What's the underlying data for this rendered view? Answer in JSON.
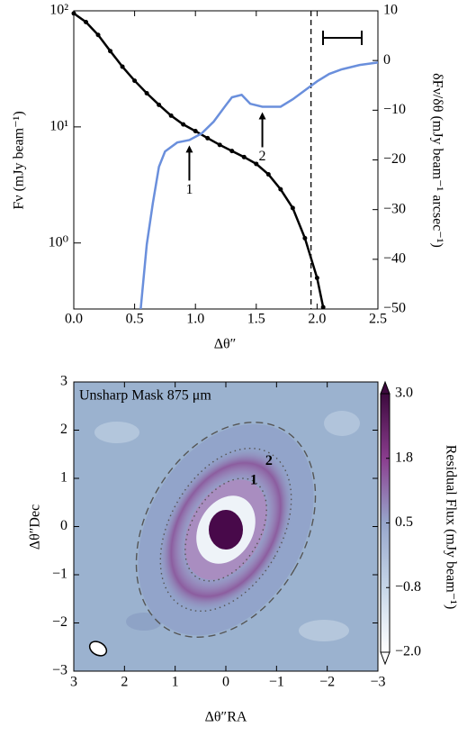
{
  "chart_data": [
    {
      "type": "line",
      "xlabel": "Δθ″",
      "ylabel": "Fν (mJy beam⁻¹)",
      "y2label": "δFν/δθ (mJy beam⁻¹ arcsec⁻¹)",
      "log_y": true,
      "xlim": [
        0,
        2.5
      ],
      "xticks": [
        {
          "value": 0,
          "label": "0.0"
        },
        0.5,
        {
          "value": 1,
          "label": "1.0"
        },
        1.5,
        {
          "value": 2,
          "label": "2.0"
        },
        2.5
      ],
      "ylim": [
        0.27,
        100
      ],
      "yticks": [
        {
          "value": 1,
          "label": "10⁰"
        },
        {
          "value": 10,
          "label": "10¹"
        },
        {
          "value": 100,
          "label": "10²"
        }
      ],
      "y2lim": [
        -50,
        10
      ],
      "y2ticks": [
        {
          "value": -50,
          "label": "−50"
        },
        {
          "value": -40,
          "label": "−40"
        },
        {
          "value": -30,
          "label": "−30"
        },
        {
          "value": -20,
          "label": "−20"
        },
        {
          "value": -10,
          "label": "−10"
        },
        0,
        10
      ],
      "vline": 1.95,
      "series": [
        {
          "color": "#000000",
          "markers": true,
          "x": [
            0,
            0.1,
            0.2,
            0.3,
            0.4,
            0.5,
            0.6,
            0.7,
            0.8,
            0.9,
            1.0,
            1.1,
            1.2,
            1.3,
            1.4,
            1.5,
            1.6,
            1.7,
            1.8,
            1.9,
            2.0,
            2.05
          ],
          "values": [
            95,
            80,
            62,
            45,
            33,
            25,
            19.5,
            15.5,
            12.5,
            10.5,
            9.2,
            8.0,
            7.0,
            6.2,
            5.5,
            4.8,
            3.9,
            2.9,
            2.0,
            1.1,
            0.5,
            0.28
          ]
        },
        {
          "color": "#6a8fdc",
          "axis": "y2",
          "markers": false,
          "x": [
            0.55,
            0.6,
            0.65,
            0.7,
            0.75,
            0.85,
            0.95,
            1.05,
            1.15,
            1.25,
            1.3,
            1.38,
            1.45,
            1.55,
            1.7,
            1.8,
            1.9,
            2.0,
            2.1,
            2.2,
            2.35,
            2.5
          ],
          "values": [
            -50,
            -37,
            -28.7,
            -21.4,
            -18.3,
            -16.5,
            -16,
            -14.7,
            -12.3,
            -9,
            -7.4,
            -6.9,
            -8.7,
            -9.3,
            -9.3,
            -7.8,
            -6,
            -4.2,
            -2.7,
            -1.8,
            -0.9,
            -0.4
          ]
        }
      ],
      "annotations": [
        {
          "text": "1",
          "x": 0.95
        },
        {
          "text": "2",
          "x": 1.55
        }
      ]
    },
    {
      "type": "image",
      "title": "Unsharp Mask 875 μm",
      "xlabel": "Δθ″RA",
      "ylabel": "Δθ″Dec",
      "colorbar_label": "Residual Flux (mJy beam⁻¹)",
      "xlim": [
        3,
        -3
      ],
      "xticks": [
        3,
        2,
        1,
        0,
        {
          "value": -1,
          "label": "−1"
        },
        {
          "value": -2,
          "label": "−2"
        },
        {
          "value": -3,
          "label": "−3"
        }
      ],
      "ylim": [
        -3,
        3
      ],
      "yticks": [
        {
          "value": -3,
          "label": "−3"
        },
        {
          "value": -2,
          "label": "−2"
        },
        {
          "value": -1,
          "label": "−1"
        },
        0,
        1,
        2,
        3
      ],
      "colorbar_ticks": [
        {
          "value": 3,
          "label": "3.0"
        },
        1.8,
        0.5,
        {
          "value": -0.8,
          "label": "−0.8"
        },
        {
          "value": -2,
          "label": "−2.0"
        }
      ],
      "annotations": [
        {
          "text": "1",
          "x": -0.55,
          "y": 0.95
        },
        {
          "text": "2",
          "x": -0.85,
          "y": 1.35
        }
      ]
    }
  ]
}
